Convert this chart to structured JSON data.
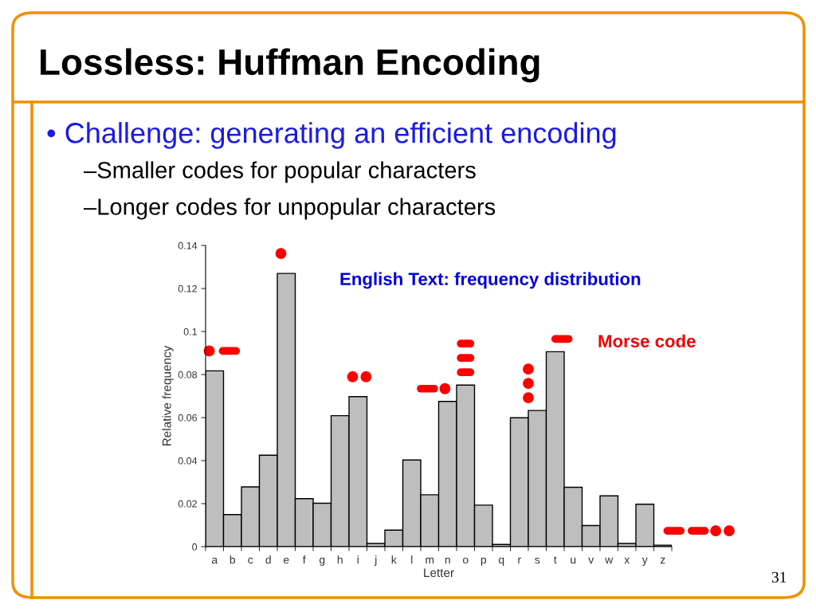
{
  "chart_data": {
    "type": "bar",
    "categories": [
      "a",
      "b",
      "c",
      "d",
      "e",
      "f",
      "g",
      "h",
      "i",
      "j",
      "k",
      "l",
      "m",
      "n",
      "o",
      "p",
      "q",
      "r",
      "s",
      "t",
      "u",
      "v",
      "w",
      "x",
      "y",
      "z"
    ],
    "values": [
      0.0817,
      0.0149,
      0.0278,
      0.0425,
      0.127,
      0.0223,
      0.0202,
      0.0609,
      0.0697,
      0.0015,
      0.0077,
      0.0403,
      0.0241,
      0.0675,
      0.0751,
      0.0193,
      0.001,
      0.0599,
      0.0633,
      0.0906,
      0.0276,
      0.0098,
      0.0236,
      0.0015,
      0.0197,
      0.0007
    ],
    "color": "#bebebe",
    "xlabel": "Letter",
    "ylabel": "Relative frequency",
    "ylim": [
      0,
      0.14
    ],
    "yticks": [
      0,
      0.02,
      0.04,
      0.06,
      0.08,
      0.1,
      0.12,
      0.14
    ],
    "grid": false,
    "legend": false,
    "annotations": [
      "Lossless: Huffman Encoding",
      "• Challenge: generating an efficient encoding",
      "–Smaller codes for popular characters",
      "–Longer codes for unpopular characters",
      "English Text: frequency distribution",
      "Morse code",
      "31"
    ]
  }
}
